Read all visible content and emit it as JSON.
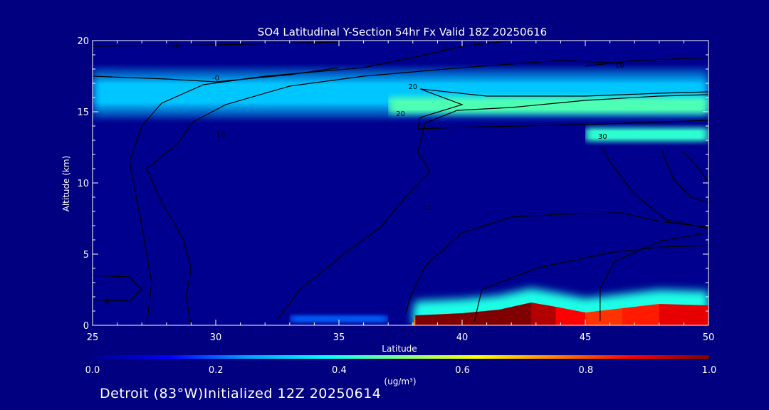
{
  "chart_data": {
    "type": "heatmap",
    "title": "SO4 Latitudinal Y-Section 54hr  Fx Valid 18Z 20250616",
    "xlabel": "Latitude",
    "ylabel": "Altitude (km)",
    "xlim": [
      25,
      50
    ],
    "ylim": [
      0,
      20
    ],
    "x_ticks": [
      25,
      30,
      35,
      40,
      45,
      50
    ],
    "y_ticks": [
      0,
      5,
      10,
      15,
      20
    ],
    "colorbar": {
      "min": 0.0,
      "max": 1.0,
      "ticks": [
        "0.0",
        "0.2",
        "0.4",
        "0.6",
        "0.8",
        "1.0"
      ],
      "unit": "(ug/m³)",
      "colormap": [
        "#00008f",
        "#0000ff",
        "#00a0ff",
        "#00ffff",
        "#80ff80",
        "#ffff00",
        "#ff8000",
        "#ff0000",
        "#800000"
      ]
    },
    "field": {
      "bands": [
        {
          "lat_from": 25,
          "lat_to": 50,
          "alt_bottom": 14.2,
          "alt_top": 18.4,
          "value": 0.3
        },
        {
          "lat_from": 37,
          "lat_to": 50,
          "alt_bottom": 14.5,
          "alt_top": 16.4,
          "value": 0.45
        },
        {
          "lat_from": 45,
          "lat_to": 50,
          "alt_bottom": 12.6,
          "alt_top": 14.2,
          "value": 0.42
        },
        {
          "lat_from": 33,
          "lat_to": 37,
          "alt_bottom": 0,
          "alt_top": 0.9,
          "value": 0.2
        }
      ],
      "surface_plume": [
        {
          "lat": 38.0,
          "alt_top": 0.0,
          "value": 0.5
        },
        {
          "lat": 38.1,
          "alt_top": 0.7,
          "value": 1.0
        },
        {
          "lat": 40.0,
          "alt_top": 0.85,
          "value": 1.0
        },
        {
          "lat": 41.5,
          "alt_top": 1.1,
          "value": 1.0
        },
        {
          "lat": 42.8,
          "alt_top": 1.6,
          "value": 1.0
        },
        {
          "lat": 43.8,
          "alt_top": 1.3,
          "value": 0.9
        },
        {
          "lat": 45.0,
          "alt_top": 0.9,
          "value": 0.85
        },
        {
          "lat": 46.5,
          "alt_top": 1.2,
          "value": 0.8
        },
        {
          "lat": 48.0,
          "alt_top": 1.5,
          "value": 0.9
        },
        {
          "lat": 50.0,
          "alt_top": 1.4,
          "value": 0.9
        }
      ]
    },
    "contours": [
      {
        "label": "-10",
        "label_at": [
          28.3,
          19.7
        ],
        "points": [
          [
            25,
            19.6
          ],
          [
            30,
            19.7
          ],
          [
            35,
            19.9
          ]
        ]
      },
      {
        "label": "-0",
        "label_at": [
          30,
          17.4
        ],
        "points": [
          [
            25,
            17.5
          ],
          [
            28,
            17.3
          ],
          [
            30,
            17.1
          ],
          [
            33,
            17.6
          ],
          [
            35,
            18.1
          ]
        ]
      },
      {
        "label": "0",
        "label_at": [
          39.3,
          19.5
        ],
        "points": [
          [
            27.2,
            0
          ],
          [
            27.4,
            3
          ],
          [
            27,
            7
          ],
          [
            26.5,
            11.5
          ],
          [
            27,
            14
          ],
          [
            27.8,
            15.6
          ],
          [
            29.5,
            16.9
          ],
          [
            32,
            17.5
          ],
          [
            36,
            18.1
          ],
          [
            38,
            18.8
          ],
          [
            40,
            19.6
          ],
          [
            42,
            20
          ]
        ]
      },
      {
        "label": "10",
        "label_at": [
          30.2,
          13.4
        ],
        "points": [
          [
            29,
            0
          ],
          [
            28.8,
            2
          ],
          [
            29,
            4
          ],
          [
            28.7,
            6
          ],
          [
            27.7,
            9
          ],
          [
            27.2,
            11
          ],
          [
            28.4,
            12.7
          ],
          [
            29.1,
            14.3
          ],
          [
            30.4,
            15.5
          ],
          [
            33,
            16.8
          ],
          [
            36,
            17.5
          ],
          [
            40,
            18.1
          ],
          [
            44,
            18.6
          ],
          [
            46.5,
            18.4
          ]
        ]
      },
      {
        "label": "10",
        "label_at": [
          38.6,
          8.3
        ],
        "points": [
          [
            37.7,
            0.8
          ],
          [
            37.9,
            2
          ],
          [
            38.5,
            4.2
          ],
          [
            40,
            6.5
          ],
          [
            42,
            7.6
          ],
          [
            44,
            7.8
          ],
          [
            46.5,
            7.9
          ],
          [
            48,
            7.3
          ],
          [
            50,
            6.9
          ]
        ]
      },
      {
        "label": "10",
        "label_at": [
          46.4,
          18.3
        ],
        "points": [
          [
            45,
            18.2
          ],
          [
            47,
            18.6
          ],
          [
            50,
            18.8
          ]
        ]
      },
      {
        "label": "20",
        "label_at": [
          37.5,
          14.9
        ],
        "points": [
          [
            32.5,
            0.4
          ],
          [
            33.4,
            2.5
          ],
          [
            35.2,
            5
          ],
          [
            36.7,
            6.9
          ],
          [
            37.7,
            9
          ],
          [
            38.7,
            10.8
          ],
          [
            38.2,
            12.2
          ],
          [
            38.5,
            14.2
          ],
          [
            39.8,
            15.1
          ],
          [
            42,
            15.3
          ],
          [
            45,
            15.8
          ],
          [
            48,
            16.1
          ],
          [
            50,
            16.2
          ]
        ]
      },
      {
        "label": "20",
        "label_at": [
          38,
          16.8
        ],
        "points": [
          [
            38.3,
            16.6
          ],
          [
            41,
            16.1
          ],
          [
            45,
            16.1
          ],
          [
            48,
            16.3
          ],
          [
            50,
            16.4
          ],
          [
            50,
            14.4
          ],
          [
            45,
            14.1
          ],
          [
            40,
            13.9
          ],
          [
            38.2,
            13.8
          ],
          [
            38.3,
            14.6
          ],
          [
            40,
            15.5
          ],
          [
            38.3,
            16.6
          ]
        ]
      },
      {
        "label": "30",
        "label_at": [
          45.7,
          13.3
        ],
        "points": [
          [
            45.6,
            0.3
          ],
          [
            45.6,
            2.6
          ],
          [
            46.2,
            4.5
          ],
          [
            48,
            5.9
          ],
          [
            50,
            6.5
          ]
        ]
      },
      {
        "label": "",
        "label_at": [
          0,
          0
        ],
        "points": [
          [
            40.5,
            0.3
          ],
          [
            40.8,
            2.5
          ],
          [
            43,
            4
          ],
          [
            46,
            5.1
          ],
          [
            48,
            5.5
          ],
          [
            50,
            5.6
          ]
        ]
      },
      {
        "label": "",
        "label_at": [
          0,
          0
        ],
        "points": [
          [
            45.7,
            12.5
          ],
          [
            46,
            11.5
          ],
          [
            47,
            9.2
          ],
          [
            48.3,
            7.4
          ],
          [
            50,
            6.8
          ]
        ]
      },
      {
        "label": "",
        "label_at": [
          0,
          0
        ],
        "points": [
          [
            48.1,
            12.3
          ],
          [
            48.6,
            10.2
          ],
          [
            49.3,
            9
          ],
          [
            50,
            8.6
          ]
        ]
      },
      {
        "label": "",
        "label_at": [
          0,
          0
        ],
        "points": [
          [
            49,
            12.2
          ],
          [
            49.6,
            11
          ],
          [
            50,
            10.1
          ]
        ]
      },
      {
        "label": "0",
        "label_at": [
          25.6,
          1.7
        ],
        "points": [
          [
            25,
            3.5
          ],
          [
            26.5,
            3.4
          ],
          [
            27,
            2.5
          ],
          [
            26.5,
            1.7
          ],
          [
            25,
            1.8
          ]
        ]
      }
    ]
  },
  "footer": {
    "text": "Detroit (83°W)Initialized 12Z 20250614"
  }
}
